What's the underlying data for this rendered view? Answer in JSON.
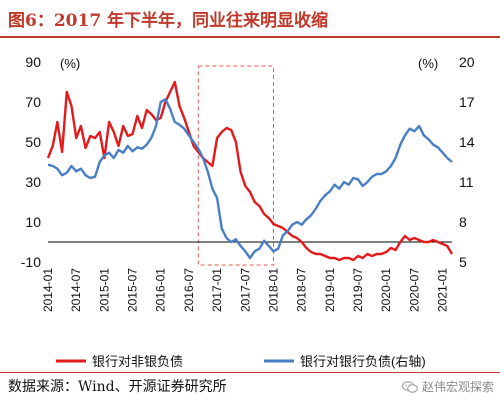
{
  "title": "图6：2017 年下半年，同业往来明显收缩",
  "source": "数据来源：Wind、开源证券研究所",
  "watermark": "赵伟宏观探索",
  "colors": {
    "brand": "#c0392b",
    "red_series": "#e31a1c",
    "blue_series": "#4a7ec4",
    "highlight_box": "#e35a5a"
  },
  "chart_data": {
    "type": "line",
    "left_unit_label": "(%)",
    "right_unit_label": "(%)",
    "left_ylim": [
      -10,
      90
    ],
    "left_yticks": [
      -10,
      10,
      30,
      50,
      70,
      90
    ],
    "right_ylim": [
      5,
      20
    ],
    "right_yticks": [
      5,
      8,
      11,
      14,
      17,
      20
    ],
    "x_tick_labels": [
      "2014-01",
      "2014-07",
      "2015-01",
      "2015-07",
      "2016-01",
      "2016-07",
      "2017-01",
      "2017-07",
      "2018-01",
      "2018-07",
      "2019-01",
      "2019-07",
      "2020-01",
      "2020-07",
      "2021-01"
    ],
    "x": [
      "2014-01",
      "2014-02",
      "2014-03",
      "2014-04",
      "2014-05",
      "2014-06",
      "2014-07",
      "2014-08",
      "2014-09",
      "2014-10",
      "2014-11",
      "2014-12",
      "2015-01",
      "2015-02",
      "2015-03",
      "2015-04",
      "2015-05",
      "2015-06",
      "2015-07",
      "2015-08",
      "2015-09",
      "2015-10",
      "2015-11",
      "2015-12",
      "2016-01",
      "2016-02",
      "2016-03",
      "2016-04",
      "2016-05",
      "2016-06",
      "2016-07",
      "2016-08",
      "2016-09",
      "2016-10",
      "2016-11",
      "2016-12",
      "2017-01",
      "2017-02",
      "2017-03",
      "2017-04",
      "2017-05",
      "2017-06",
      "2017-07",
      "2017-08",
      "2017-09",
      "2017-10",
      "2017-11",
      "2017-12",
      "2018-01",
      "2018-02",
      "2018-03",
      "2018-04",
      "2018-05",
      "2018-06",
      "2018-07",
      "2018-08",
      "2018-09",
      "2018-10",
      "2018-11",
      "2018-12",
      "2019-01",
      "2019-02",
      "2019-03",
      "2019-04",
      "2019-05",
      "2019-06",
      "2019-07",
      "2019-08",
      "2019-09",
      "2019-10",
      "2019-11",
      "2019-12",
      "2020-01",
      "2020-02",
      "2020-03",
      "2020-04",
      "2020-05",
      "2020-06",
      "2020-07",
      "2020-08",
      "2020-09",
      "2020-10",
      "2020-11",
      "2020-12",
      "2021-01",
      "2021-02",
      "2021-03"
    ],
    "series": [
      {
        "name": "银行对非银负债",
        "axis": "left",
        "values": [
          42,
          48,
          60,
          45,
          75,
          68,
          52,
          58,
          47,
          53,
          52,
          55,
          42,
          60,
          55,
          48,
          58,
          53,
          54,
          63,
          57,
          66,
          64,
          61,
          62,
          70,
          75,
          80,
          68,
          62,
          55,
          48,
          45,
          42,
          40,
          38,
          52,
          55,
          57,
          56,
          50,
          35,
          28,
          25,
          20,
          18,
          14,
          12,
          9,
          8,
          7,
          5,
          3,
          2,
          0,
          -3,
          -5,
          -6,
          -6,
          -7,
          -8,
          -8,
          -9,
          -8,
          -8,
          -9,
          -7,
          -8,
          -6,
          -7,
          -6,
          -6,
          -5,
          -3,
          -4,
          0,
          3,
          1,
          2,
          1,
          0,
          0,
          1,
          0,
          -1,
          -2,
          -6
        ]
      },
      {
        "name": "银行对银行负债(右轴)",
        "axis": "right",
        "values": [
          12.3,
          12.2,
          12.0,
          11.5,
          11.7,
          12.2,
          11.8,
          12.0,
          11.5,
          11.3,
          11.4,
          12.5,
          13.0,
          13.2,
          12.8,
          13.4,
          13.2,
          13.7,
          13.3,
          13.6,
          13.5,
          13.8,
          14.3,
          15.2,
          17.0,
          17.2,
          16.5,
          15.5,
          15.3,
          15.0,
          14.5,
          14.0,
          13.5,
          12.8,
          11.8,
          10.5,
          9.8,
          7.5,
          6.8,
          6.5,
          6.7,
          6.2,
          5.8,
          5.3,
          5.8,
          6.0,
          6.6,
          6.2,
          5.8,
          6.0,
          7.0,
          7.3,
          7.8,
          8.0,
          7.8,
          8.2,
          8.5,
          9.0,
          9.6,
          10.0,
          10.3,
          10.8,
          10.5,
          11.0,
          10.8,
          11.3,
          11.2,
          10.7,
          11.0,
          11.4,
          11.6,
          11.6,
          11.8,
          12.2,
          12.8,
          13.8,
          14.5,
          15.0,
          14.8,
          15.2,
          14.5,
          14.2,
          13.8,
          13.6,
          13.2,
          12.8,
          12.5
        ]
      }
    ],
    "highlight": {
      "from": "2016-09",
      "to": "2018-01"
    },
    "zero_line": 0
  }
}
